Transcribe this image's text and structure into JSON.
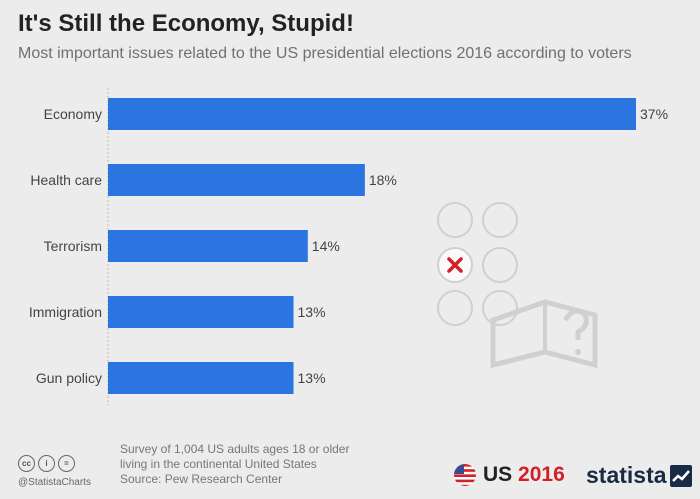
{
  "header": {
    "title": "It's Still the Economy, Stupid!",
    "subtitle": "Most important issues related to the US presidential elections 2016 according to voters"
  },
  "chart_data": {
    "type": "bar",
    "orientation": "horizontal",
    "title": "It's Still the Economy, Stupid!",
    "categories": [
      "Economy",
      "Health care",
      "Terrorism",
      "Immigration",
      "Gun policy"
    ],
    "values": [
      37,
      18,
      14,
      13,
      13
    ],
    "value_labels": [
      "37%",
      "18%",
      "14%",
      "13%",
      "13%"
    ],
    "unit": "%",
    "xlim": [
      0,
      37
    ],
    "grid": false,
    "bar_color": "#2a75e0"
  },
  "footer": {
    "survey_line1": "Survey of 1,004 US adults ages 18 or older",
    "survey_line2": "living in the continental United States",
    "source": "Source: Pew Research Center",
    "handle": "@StatistaCharts",
    "cc_icons": [
      "cc-icon",
      "by-icon",
      "nd-icon"
    ],
    "cc_glyphs": [
      "cc",
      "i",
      "="
    ]
  },
  "branding": {
    "us_label": "US",
    "year": "2016",
    "brand_name": "statista"
  },
  "colors": {
    "accent": "#2a75e0",
    "year_red": "#d32027",
    "background": "#ececec"
  }
}
